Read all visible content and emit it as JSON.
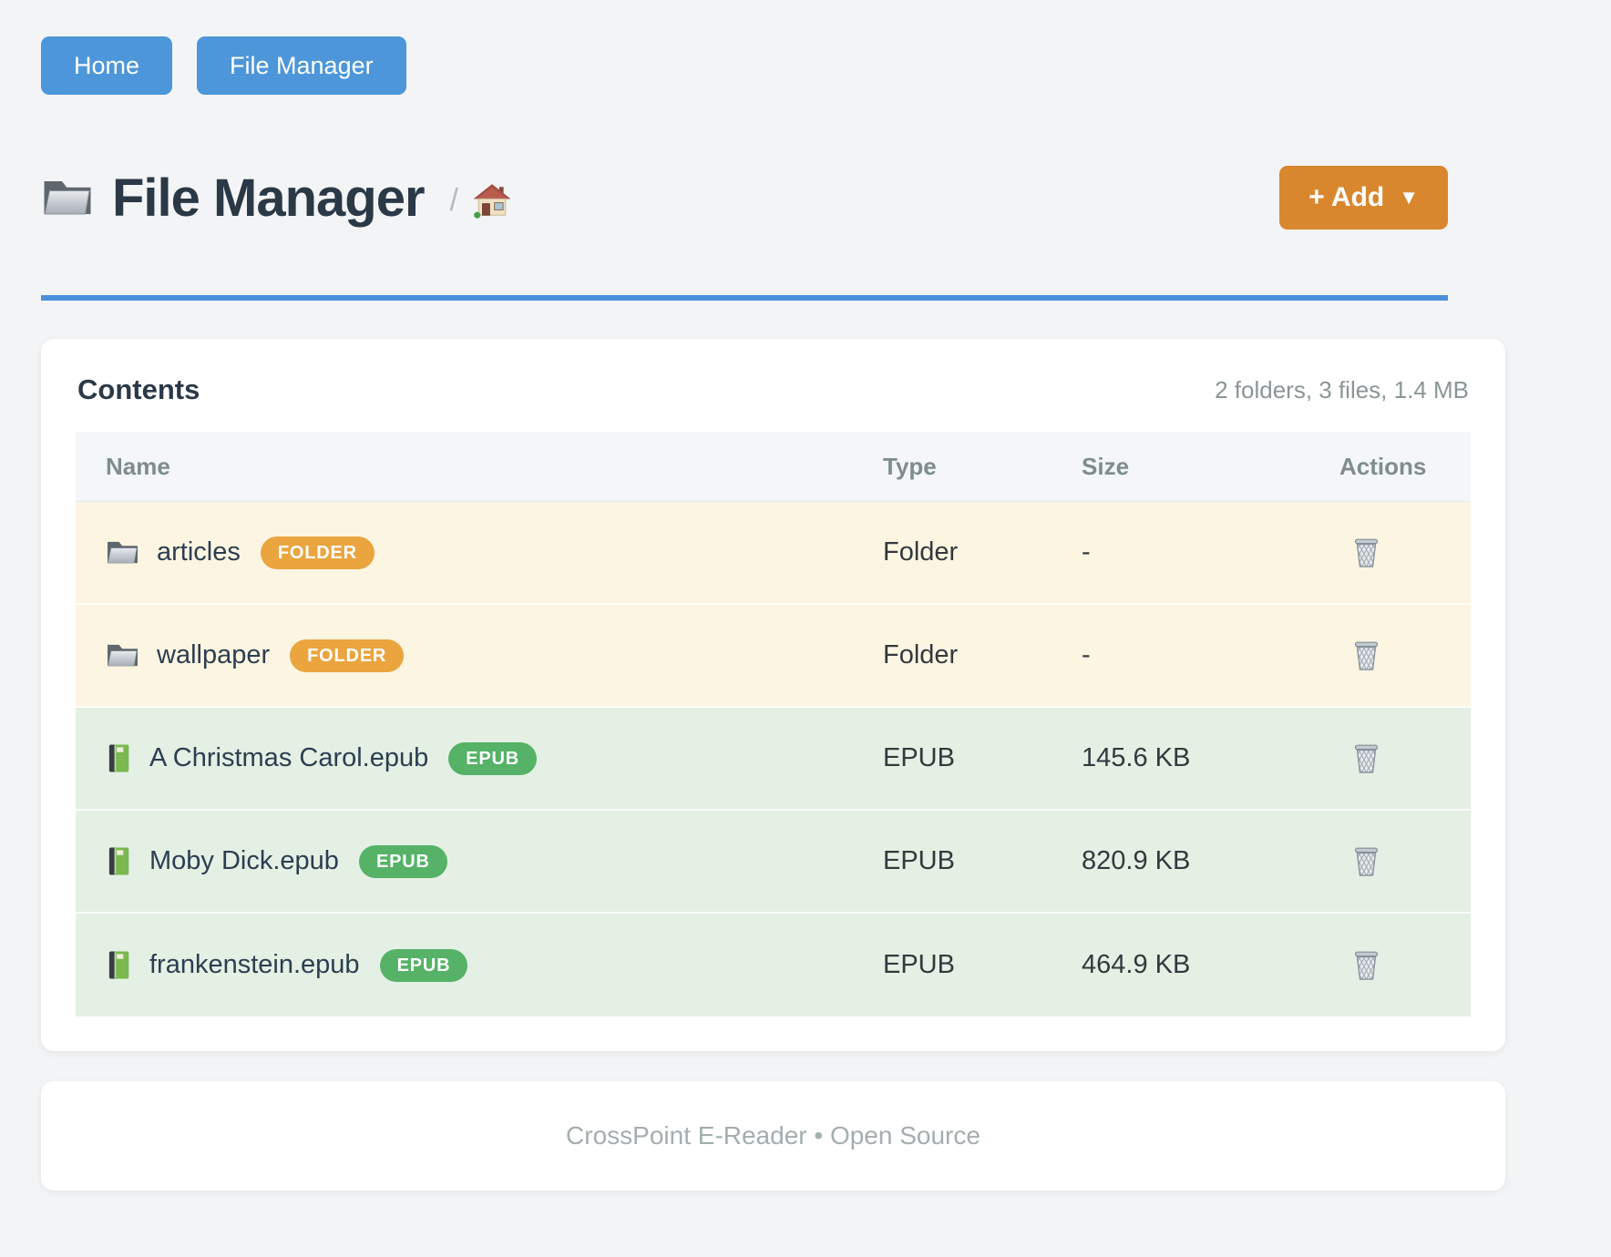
{
  "nav": {
    "buttons": [
      {
        "label": "Home"
      },
      {
        "label": "File Manager"
      }
    ]
  },
  "header": {
    "title": "File Manager",
    "title_icon": "folder-icon",
    "breadcrumb_separator": "/",
    "breadcrumb_home_icon": "house-icon",
    "add_button": {
      "label": "+ Add",
      "caret": "▼"
    }
  },
  "contents_card": {
    "title": "Contents",
    "summary": "2 folders, 3 files, 1.4 MB",
    "table": {
      "columns": [
        "Name",
        "Type",
        "Size",
        "Actions"
      ],
      "delete_icon": "trash-icon",
      "rows": [
        {
          "name": "articles",
          "badge": "FOLDER",
          "kind": "folder",
          "icon": "folder-icon",
          "type": "Folder",
          "size": "-"
        },
        {
          "name": "wallpaper",
          "badge": "FOLDER",
          "kind": "folder",
          "icon": "folder-icon",
          "type": "Folder",
          "size": "-"
        },
        {
          "name": "A Christmas Carol.epub",
          "badge": "EPUB",
          "kind": "epub",
          "icon": "book-icon",
          "type": "EPUB",
          "size": "145.6 KB"
        },
        {
          "name": "Moby Dick.epub",
          "badge": "EPUB",
          "kind": "epub",
          "icon": "book-icon",
          "type": "EPUB",
          "size": "820.9 KB"
        },
        {
          "name": "frankenstein.epub",
          "badge": "EPUB",
          "kind": "epub",
          "icon": "book-icon",
          "type": "EPUB",
          "size": "464.9 KB"
        }
      ]
    }
  },
  "footer": {
    "text": "CrossPoint E-Reader • Open Source"
  },
  "colors": {
    "accent_blue": "#4d96d9",
    "divider_blue": "#4a91d9",
    "add_orange": "#d9872f",
    "badge_folder": "#eaa53f",
    "badge_epub": "#55b266",
    "row_folder_bg": "#fcf5e2",
    "row_epub_bg": "#e4f0e4",
    "page_bg": "#f3f4f5"
  }
}
